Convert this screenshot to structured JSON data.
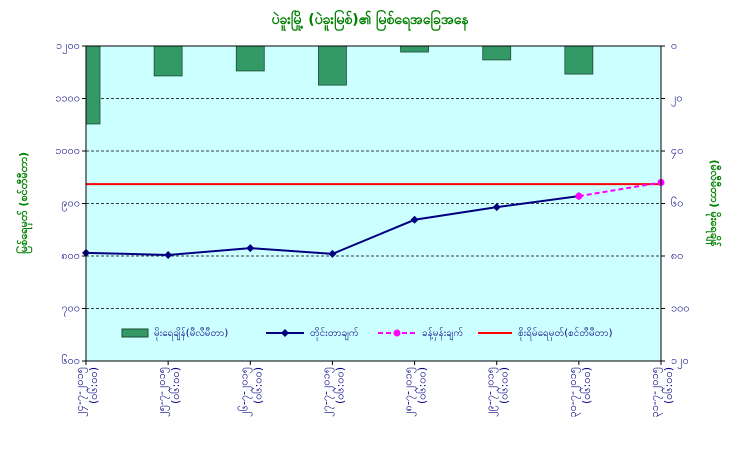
{
  "chart_data": {
    "type": "combo",
    "title": "ပဲခူးမြို့ (ပဲခူးမြစ်)၏ မြစ်ရေအခြေအနေ",
    "y_label": "မြစ်ရေမှတ် (စင်တီမီတာ)",
    "y2_label": "(မီလီမီတာ) မိုးရေချိန်",
    "categories": [
      "၂၄-၇-၂၀၁၅",
      "၂၅-၇-၂၀၁၅",
      "၂၆-၇-၂၀၁၅",
      "၂၇-၇-၂၀၁၅",
      "၂၈-၇-၂၀၁၅",
      "၂၉-၇-၂၀၁၅",
      "၃၀-၇-၂၀၁၅",
      "၃၁-၇-၂၀၁၅"
    ],
    "category_times": [
      "(၀၆:၀၀)",
      "(၀၆:၀၀)",
      "(၀၆:၀၀)",
      "(၀၆:၀၀)",
      "(၀၆:၀၀)",
      "(၀၆:၀၀)",
      "(၀၆:၀၀)",
      "(၀၆:၀၀)"
    ],
    "series": [
      {
        "name": "မိုးရေချိန်(မီလီမီတာ)",
        "kind": "bar",
        "axis": "y2",
        "color": "#339966",
        "values": [
          29.7,
          11.4,
          9.5,
          14.9,
          2.3,
          5.3,
          10.7,
          null
        ]
      },
      {
        "name": "တိုင်းတာချက်",
        "kind": "line",
        "color": "#000080",
        "marker": "diamond",
        "values": [
          806,
          802,
          815,
          804,
          869,
          893,
          914,
          null
        ]
      },
      {
        "name": "ခန့်မှန်းချက်",
        "kind": "line",
        "color": "#ff00ff",
        "marker": "circle",
        "dashed": true,
        "values": [
          null,
          null,
          null,
          null,
          null,
          null,
          914,
          940
        ]
      }
    ],
    "reference_line": {
      "name": "စိုးရိမ်ရေမှတ်(စင်တီမီတာ)",
      "value": 937,
      "color": "#ff0000"
    },
    "ylim": [
      600,
      1200
    ],
    "yticks": [
      {
        "value": 600,
        "label": "၆၀၀"
      },
      {
        "value": 700,
        "label": "၇၀၀"
      },
      {
        "value": 800,
        "label": "၈၀၀"
      },
      {
        "value": 900,
        "label": "၉၀၀"
      },
      {
        "value": 1000,
        "label": "၁၀၀၀"
      },
      {
        "value": 1100,
        "label": "၁၁၀၀"
      },
      {
        "value": 1200,
        "label": "၁၂၀၀"
      }
    ],
    "y2lim": [
      0,
      120
    ],
    "y2_reversed": true,
    "y2ticks": [
      {
        "value": 0,
        "label": "၀"
      },
      {
        "value": 20,
        "label": "၂၀"
      },
      {
        "value": 40,
        "label": "၄၀"
      },
      {
        "value": 60,
        "label": "၆၀"
      },
      {
        "value": 80,
        "label": "၈၀"
      },
      {
        "value": 100,
        "label": "၁၀၀"
      },
      {
        "value": 120,
        "label": "၁၂၀"
      }
    ],
    "grid": true,
    "plot_background": "#ccffff"
  }
}
